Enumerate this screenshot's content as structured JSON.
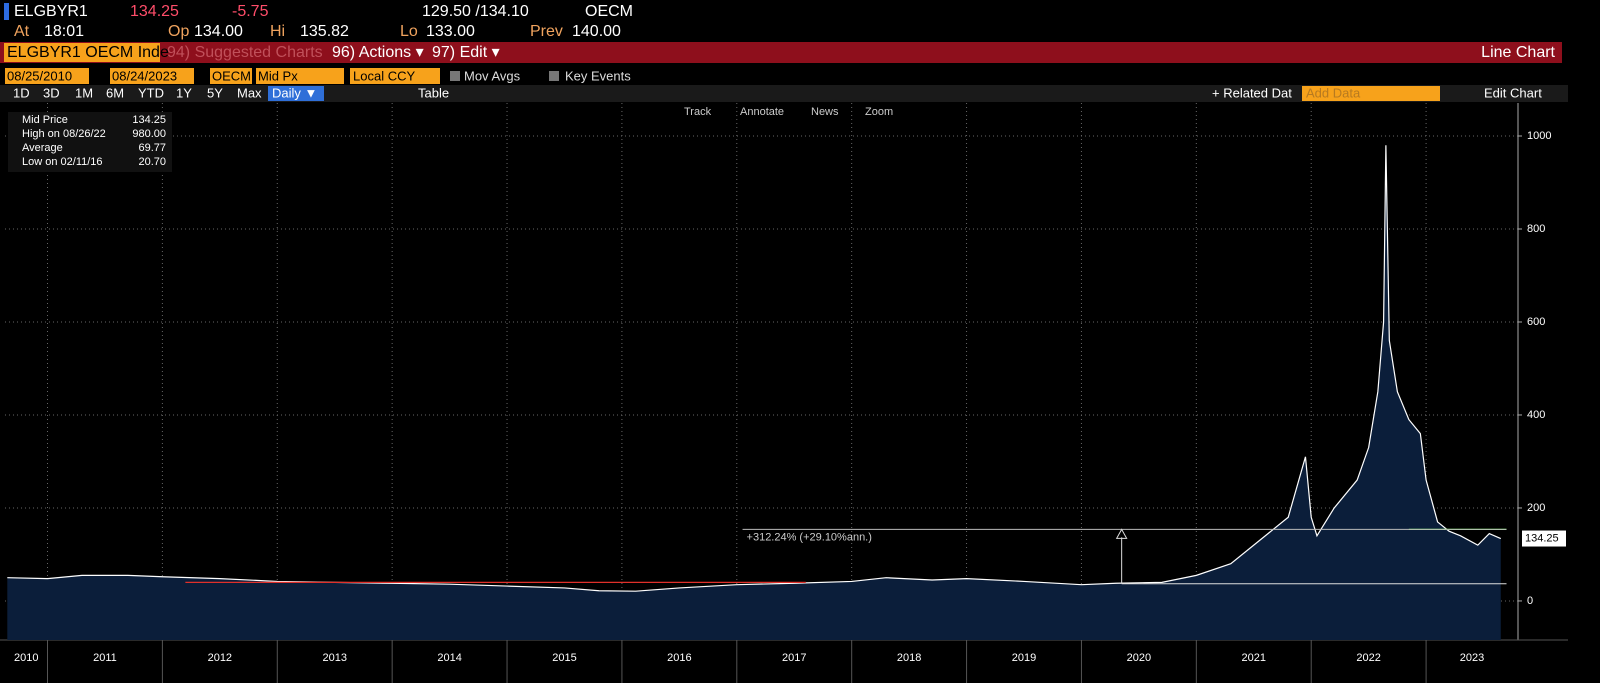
{
  "header": {
    "ticker": "ELGBYR1",
    "last": "134.25",
    "change": "-5.75",
    "bid_ask": "129.50 /134.10",
    "source": "OECM",
    "fields": [
      [
        "At",
        "18:01"
      ],
      [
        "Op",
        "134.00"
      ],
      [
        "Hi",
        "135.82"
      ],
      [
        "Lo",
        "133.00"
      ],
      [
        "Prev",
        "140.00"
      ]
    ]
  },
  "toolbar": {
    "security": "ELGBYR1 OECM Inde",
    "suggested": "94) Suggested Charts",
    "actions": "96) Actions ▾",
    "edit": "97) Edit ▾",
    "chart_type": "Line Chart"
  },
  "settings": {
    "start": "08/25/2010",
    "end": "08/24/2023",
    "source": "OECM",
    "field": "Mid Px",
    "currency": "Local CCY",
    "mov_avgs": "Mov Avgs",
    "key_events": "Key Events"
  },
  "controls": {
    "periods": [
      "1D",
      "3D",
      "1M",
      "6M",
      "YTD",
      "1Y",
      "5Y",
      "Max"
    ],
    "frequency": "Daily ▼",
    "table": "Table",
    "related": "+ Related Dat",
    "add_data": "Add Data",
    "edit_chart": "Edit Chart"
  },
  "tools": [
    "Track",
    "Annotate",
    "News",
    "Zoom"
  ],
  "legend_box": [
    [
      "Mid Price",
      "134.25"
    ],
    [
      "High on 08/26/22",
      "980.00"
    ],
    [
      "Average",
      "69.77"
    ],
    [
      "Low on 02/11/16",
      "20.70"
    ]
  ],
  "chart_data": {
    "type": "area",
    "x": [
      2010.65,
      2011.0,
      2011.3,
      2011.7,
      2012.0,
      2012.5,
      2013.0,
      2013.5,
      2014.0,
      2014.5,
      2015.0,
      2015.5,
      2015.8,
      2016.12,
      2016.5,
      2017.0,
      2017.5,
      2018.0,
      2018.3,
      2018.7,
      2019.0,
      2019.5,
      2020.0,
      2020.3,
      2020.7,
      2021.0,
      2021.3,
      2021.5,
      2021.8,
      2021.95,
      2022.0,
      2022.05,
      2022.2,
      2022.4,
      2022.5,
      2022.58,
      2022.63,
      2022.65,
      2022.68,
      2022.75,
      2022.85,
      2022.95,
      2023.0,
      2023.1,
      2023.2,
      2023.3,
      2023.45,
      2023.55,
      2023.65
    ],
    "series": [
      {
        "name": "Mid Price",
        "color": "#ffffff",
        "fill": "#0b1e3a",
        "values": [
          50,
          48,
          55,
          55,
          52,
          48,
          42,
          40,
          38,
          36,
          32,
          28,
          22,
          21,
          28,
          35,
          38,
          42,
          50,
          45,
          48,
          42,
          35,
          38,
          40,
          55,
          80,
          120,
          180,
          310,
          180,
          140,
          200,
          260,
          330,
          450,
          600,
          980,
          560,
          450,
          390,
          360,
          260,
          170,
          150,
          140,
          120,
          145,
          134.25
        ]
      }
    ],
    "xlim": [
      2010.63,
      2023.8
    ],
    "ylim": [
      -84,
      1071
    ],
    "xticks": [
      2010,
      2011,
      2012,
      2013,
      2014,
      2015,
      2016,
      2017,
      2018,
      2019,
      2020,
      2021,
      2022,
      2023
    ],
    "yticks": [
      0,
      200,
      400,
      600,
      800,
      1000
    ],
    "grid": true,
    "lines": [
      {
        "color": "#e0302a",
        "value": 40,
        "x": [
          2012.2,
          2017.6
        ]
      },
      {
        "color": "#5ee04a",
        "value": 154,
        "x": [
          2022.85,
          2023.7
        ]
      }
    ],
    "annotation": {
      "text": "+312.24% (+29.10%ann.)",
      "x": 2020.35,
      "low": 37,
      "high": 154,
      "start": 2017.05,
      "end": 2023.7
    }
  }
}
